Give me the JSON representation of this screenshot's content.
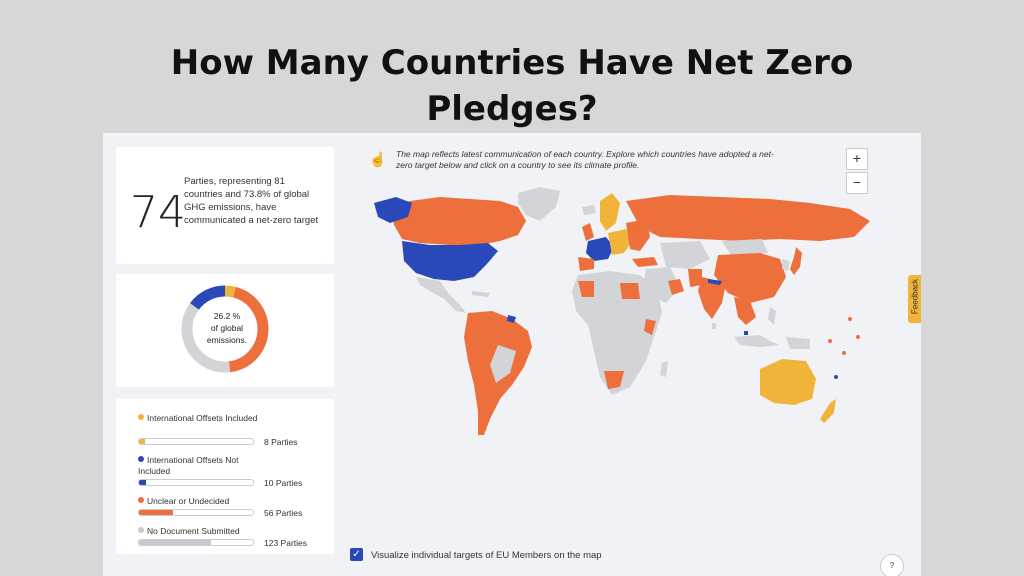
{
  "slide": {
    "title_line1": "How Many Countries Have Net Zero",
    "title_line2": "Pledges?"
  },
  "stat": {
    "number": "74",
    "description": "Parties, representing 81 countries and 73.8% of global GHG emissions, have communicated a net-zero target"
  },
  "donut": {
    "label_line1": "26.2 %",
    "label_line2": "of global",
    "label_line3": "emissions.",
    "segments": [
      {
        "color": "#f0b43a",
        "fraction": 0.04
      },
      {
        "color": "#ec6f3c",
        "fraction": 0.44
      },
      {
        "color": "#d2d4d8",
        "fraction": 0.37
      },
      {
        "color": "#2a49b8",
        "fraction": 0.15
      }
    ]
  },
  "legend": [
    {
      "label": "International Offsets Included",
      "count": "8 Parties",
      "color": "#f0b43a",
      "fill": 0.05
    },
    {
      "label": "International Offsets Not Included",
      "count": "10 Parties",
      "color": "#2a49b8",
      "fill": 0.06
    },
    {
      "label": "Unclear or Undecided",
      "count": "56 Parties",
      "color": "#ec6f3c",
      "fill": 0.3
    },
    {
      "label": "No Document Submitted",
      "count": "123 Parties",
      "color": "#c7c9ce",
      "fill": 0.63
    }
  ],
  "map": {
    "info_text": "The map reflects latest communication of each country. Explore which countries have adopted a net-zero target below and click on a country to see its climate profile.",
    "hand_icon": "hand-pointer-icon",
    "zoom_in": "+",
    "zoom_out": "−",
    "feedback_label": "Feedback",
    "checkbox_check": "✓",
    "checkbox_label": "Visualize individual targets of EU Members on the map",
    "help_label": "?",
    "colors": {
      "orange": "#ec6f3c",
      "blue": "#2a49b8",
      "yellow": "#f0b43a",
      "gray": "#d2d4d8"
    }
  }
}
